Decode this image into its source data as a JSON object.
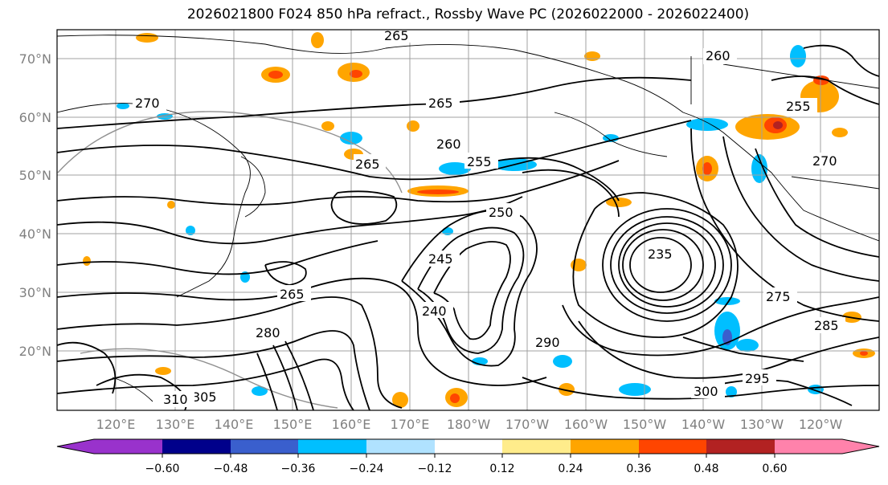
{
  "title": "2026021800 F024 850 hPa refract., Rossby Wave PC (2026022000 - 2026022400)",
  "lat_labels": [
    "70°N",
    "60°N",
    "50°N",
    "40°N",
    "30°N",
    "20°N"
  ],
  "lon_labels": [
    "120°E",
    "130°E",
    "140°E",
    "150°E",
    "160°E",
    "170°E",
    "180°W",
    "170°W",
    "160°W",
    "150°W",
    "140°W",
    "130°W",
    "120°W"
  ],
  "colorbar": {
    "colors": [
      "#9932cc",
      "#00008b",
      "#3a5fcd",
      "#00bfff",
      "#b0e2ff",
      "#ffffff",
      "#ffec8b",
      "#ffa500",
      "#ff4500",
      "#b22222",
      "#ff82ab"
    ],
    "tick_labels": [
      "−0.60",
      "−0.48",
      "−0.36",
      "−0.24",
      "−0.12",
      "0.12",
      "0.24",
      "0.36",
      "0.48",
      "0.60"
    ]
  },
  "contour_labels": [
    "265",
    "270",
    "260",
    "265",
    "255",
    "265",
    "260",
    "255",
    "250",
    "245",
    "240",
    "235",
    "265",
    "270",
    "275",
    "280",
    "285",
    "290",
    "295",
    "300",
    "305",
    "310"
  ],
  "grid_colors": {
    "grid": "#a0a0a0",
    "contour": "#000000",
    "coast": "#000000"
  }
}
